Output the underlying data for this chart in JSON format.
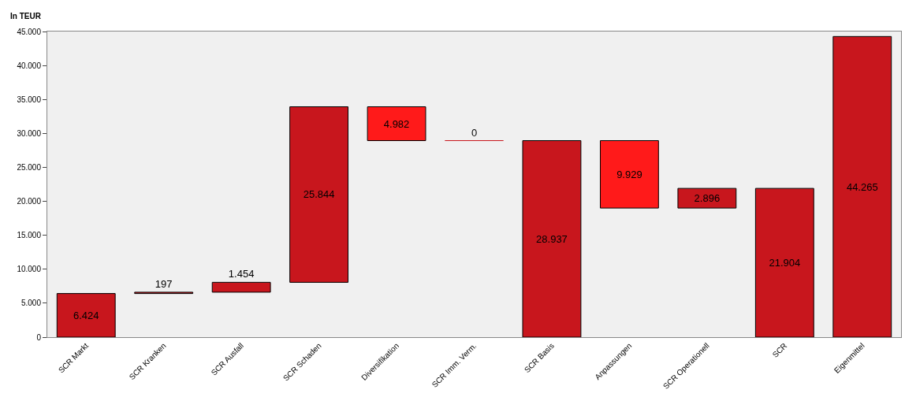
{
  "chart_data": {
    "type": "bar",
    "ylabel": "In TEUR",
    "categories": [
      "SCR Markt",
      "SCR Kranken",
      "SCR Ausfall",
      "SCR Schaden",
      "Diversifikation",
      "SCR Imm. Verm.",
      "SCR Basis",
      "Anpassungen",
      "SCR Operationell",
      "SCR",
      "Eigenmittel"
    ],
    "values": [
      6424,
      197,
      1454,
      25844,
      4982,
      0,
      28937,
      9929,
      2896,
      21904,
      44265
    ],
    "base": [
      0,
      6424,
      6621,
      8075,
      28937,
      28937,
      0,
      19008,
      19008,
      0,
      0
    ],
    "colors": [
      "#c8161d",
      "#c8161d",
      "#c8161d",
      "#c8161d",
      "#ff1a1a",
      "#c8161d",
      "#c8161d",
      "#ff1a1a",
      "#c8161d",
      "#c8161d",
      "#c8161d"
    ],
    "value_labels": [
      "6.424",
      "197",
      "1.454",
      "25.844",
      "4.982",
      "0",
      "28.937",
      "9.929",
      "2.896",
      "21.904",
      "44.265"
    ],
    "ylim": [
      0,
      45000
    ],
    "yticks": [
      {
        "value": 0,
        "label": "0"
      },
      {
        "value": 5000,
        "label": "5.000"
      },
      {
        "value": 10000,
        "label": "10.000"
      },
      {
        "value": 15000,
        "label": "15.000"
      },
      {
        "value": 20000,
        "label": "20.000"
      },
      {
        "value": 25000,
        "label": "25.000"
      },
      {
        "value": 30000,
        "label": "30.000"
      },
      {
        "value": 35000,
        "label": "35.000"
      },
      {
        "value": 40000,
        "label": "40.000"
      },
      {
        "value": 45000,
        "label": "45.000"
      }
    ],
    "grid": false
  }
}
